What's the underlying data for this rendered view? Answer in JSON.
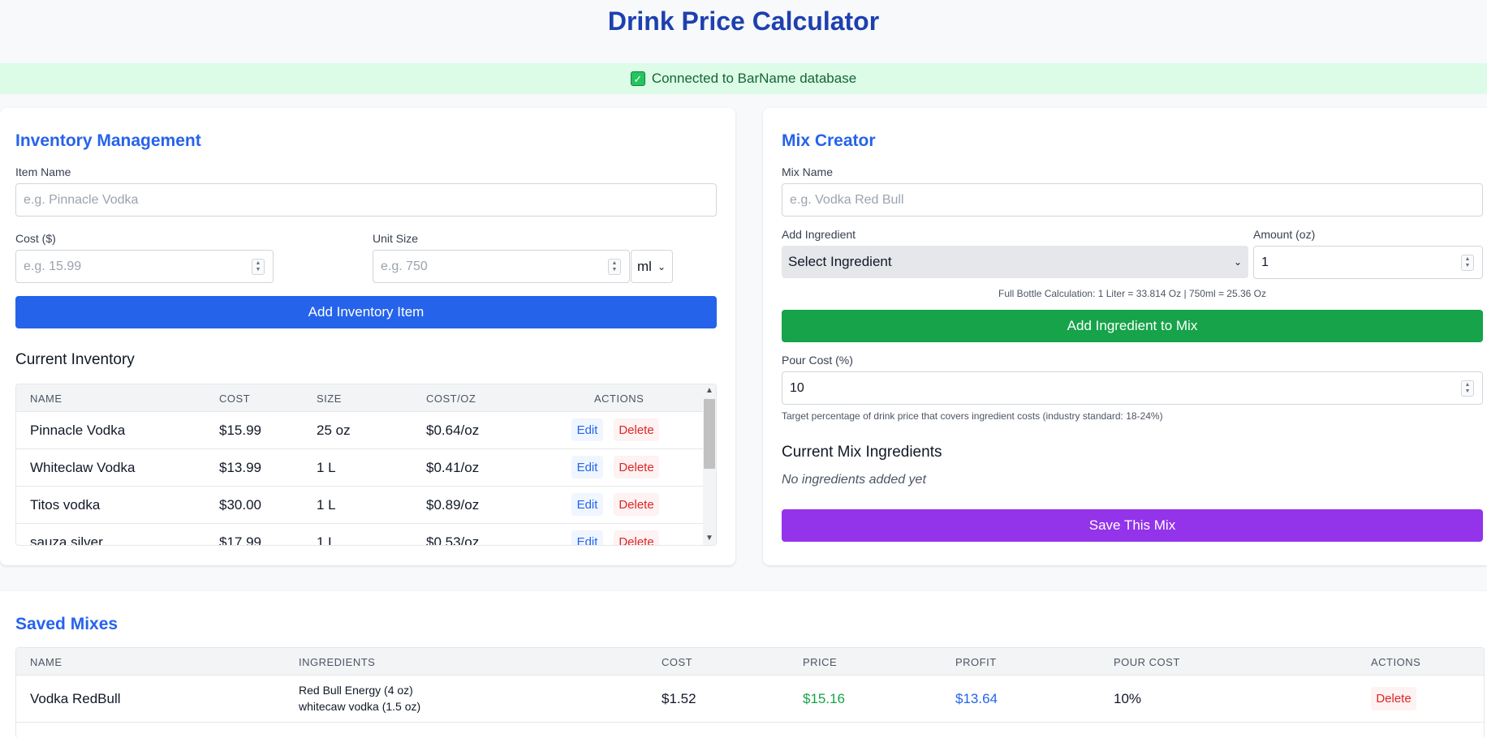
{
  "header": {
    "title": "Drink Price Calculator"
  },
  "status": {
    "text": "Connected to BarName database",
    "check": "✓"
  },
  "inventory": {
    "heading": "Inventory Management",
    "item_name_label": "Item Name",
    "item_name_placeholder": "e.g. Pinnacle Vodka",
    "cost_label": "Cost ($)",
    "cost_placeholder": "e.g. 15.99",
    "unit_size_label": "Unit Size",
    "unit_size_placeholder": "e.g. 750",
    "unit_selected": "ml",
    "add_button": "Add Inventory Item",
    "current_heading": "Current Inventory",
    "columns": [
      "NAME",
      "COST",
      "SIZE",
      "COST/OZ",
      "ACTIONS"
    ],
    "rows": [
      {
        "name": "Pinnacle Vodka",
        "cost": "$15.99",
        "size": "25 oz",
        "cost_oz": "$0.64/oz"
      },
      {
        "name": "Whiteclaw Vodka",
        "cost": "$13.99",
        "size": "1 L",
        "cost_oz": "$0.41/oz"
      },
      {
        "name": "Titos vodka",
        "cost": "$30.00",
        "size": "1 L",
        "cost_oz": "$0.89/oz"
      },
      {
        "name": "sauza silver",
        "cost": "$17.99",
        "size": "1 L",
        "cost_oz": "$0.53/oz"
      }
    ],
    "edit_label": "Edit",
    "delete_label": "Delete"
  },
  "mix": {
    "heading": "Mix Creator",
    "mix_name_label": "Mix Name",
    "mix_name_placeholder": "e.g. Vodka Red Bull",
    "add_ingredient_label": "Add Ingredient",
    "ingredient_selected": "Select Ingredient",
    "amount_label": "Amount (oz)",
    "amount_value": "1",
    "bottle_note": "Full Bottle Calculation: 1 Liter = 33.814 Oz | 750ml = 25.36 Oz",
    "add_button": "Add Ingredient to Mix",
    "pour_cost_label": "Pour Cost (%)",
    "pour_cost_value": "10",
    "pour_cost_help": "Target percentage of drink price that covers ingredient costs (industry standard: 18-24%)",
    "current_heading": "Current Mix Ingredients",
    "empty_text": "No ingredients added yet",
    "save_button": "Save This Mix"
  },
  "saved": {
    "heading": "Saved Mixes",
    "columns": [
      "NAME",
      "INGREDIENTS",
      "COST",
      "PRICE",
      "PROFIT",
      "POUR COST",
      "ACTIONS"
    ],
    "rows": [
      {
        "name": "Vodka RedBull",
        "ingredients": [
          "Red Bull Energy (4 oz)",
          "whitecaw vodka (1.5 oz)"
        ],
        "cost": "$1.52",
        "price": "$15.16",
        "profit": "$13.64",
        "pour_cost": "10%"
      }
    ],
    "delete_label": "Delete"
  },
  "colors": {
    "title": "#1e40af",
    "accent": "#2563eb",
    "success": "#16a34a",
    "purple": "#9333ea",
    "danger": "#dc2626",
    "banner_bg": "#dcfce7"
  }
}
